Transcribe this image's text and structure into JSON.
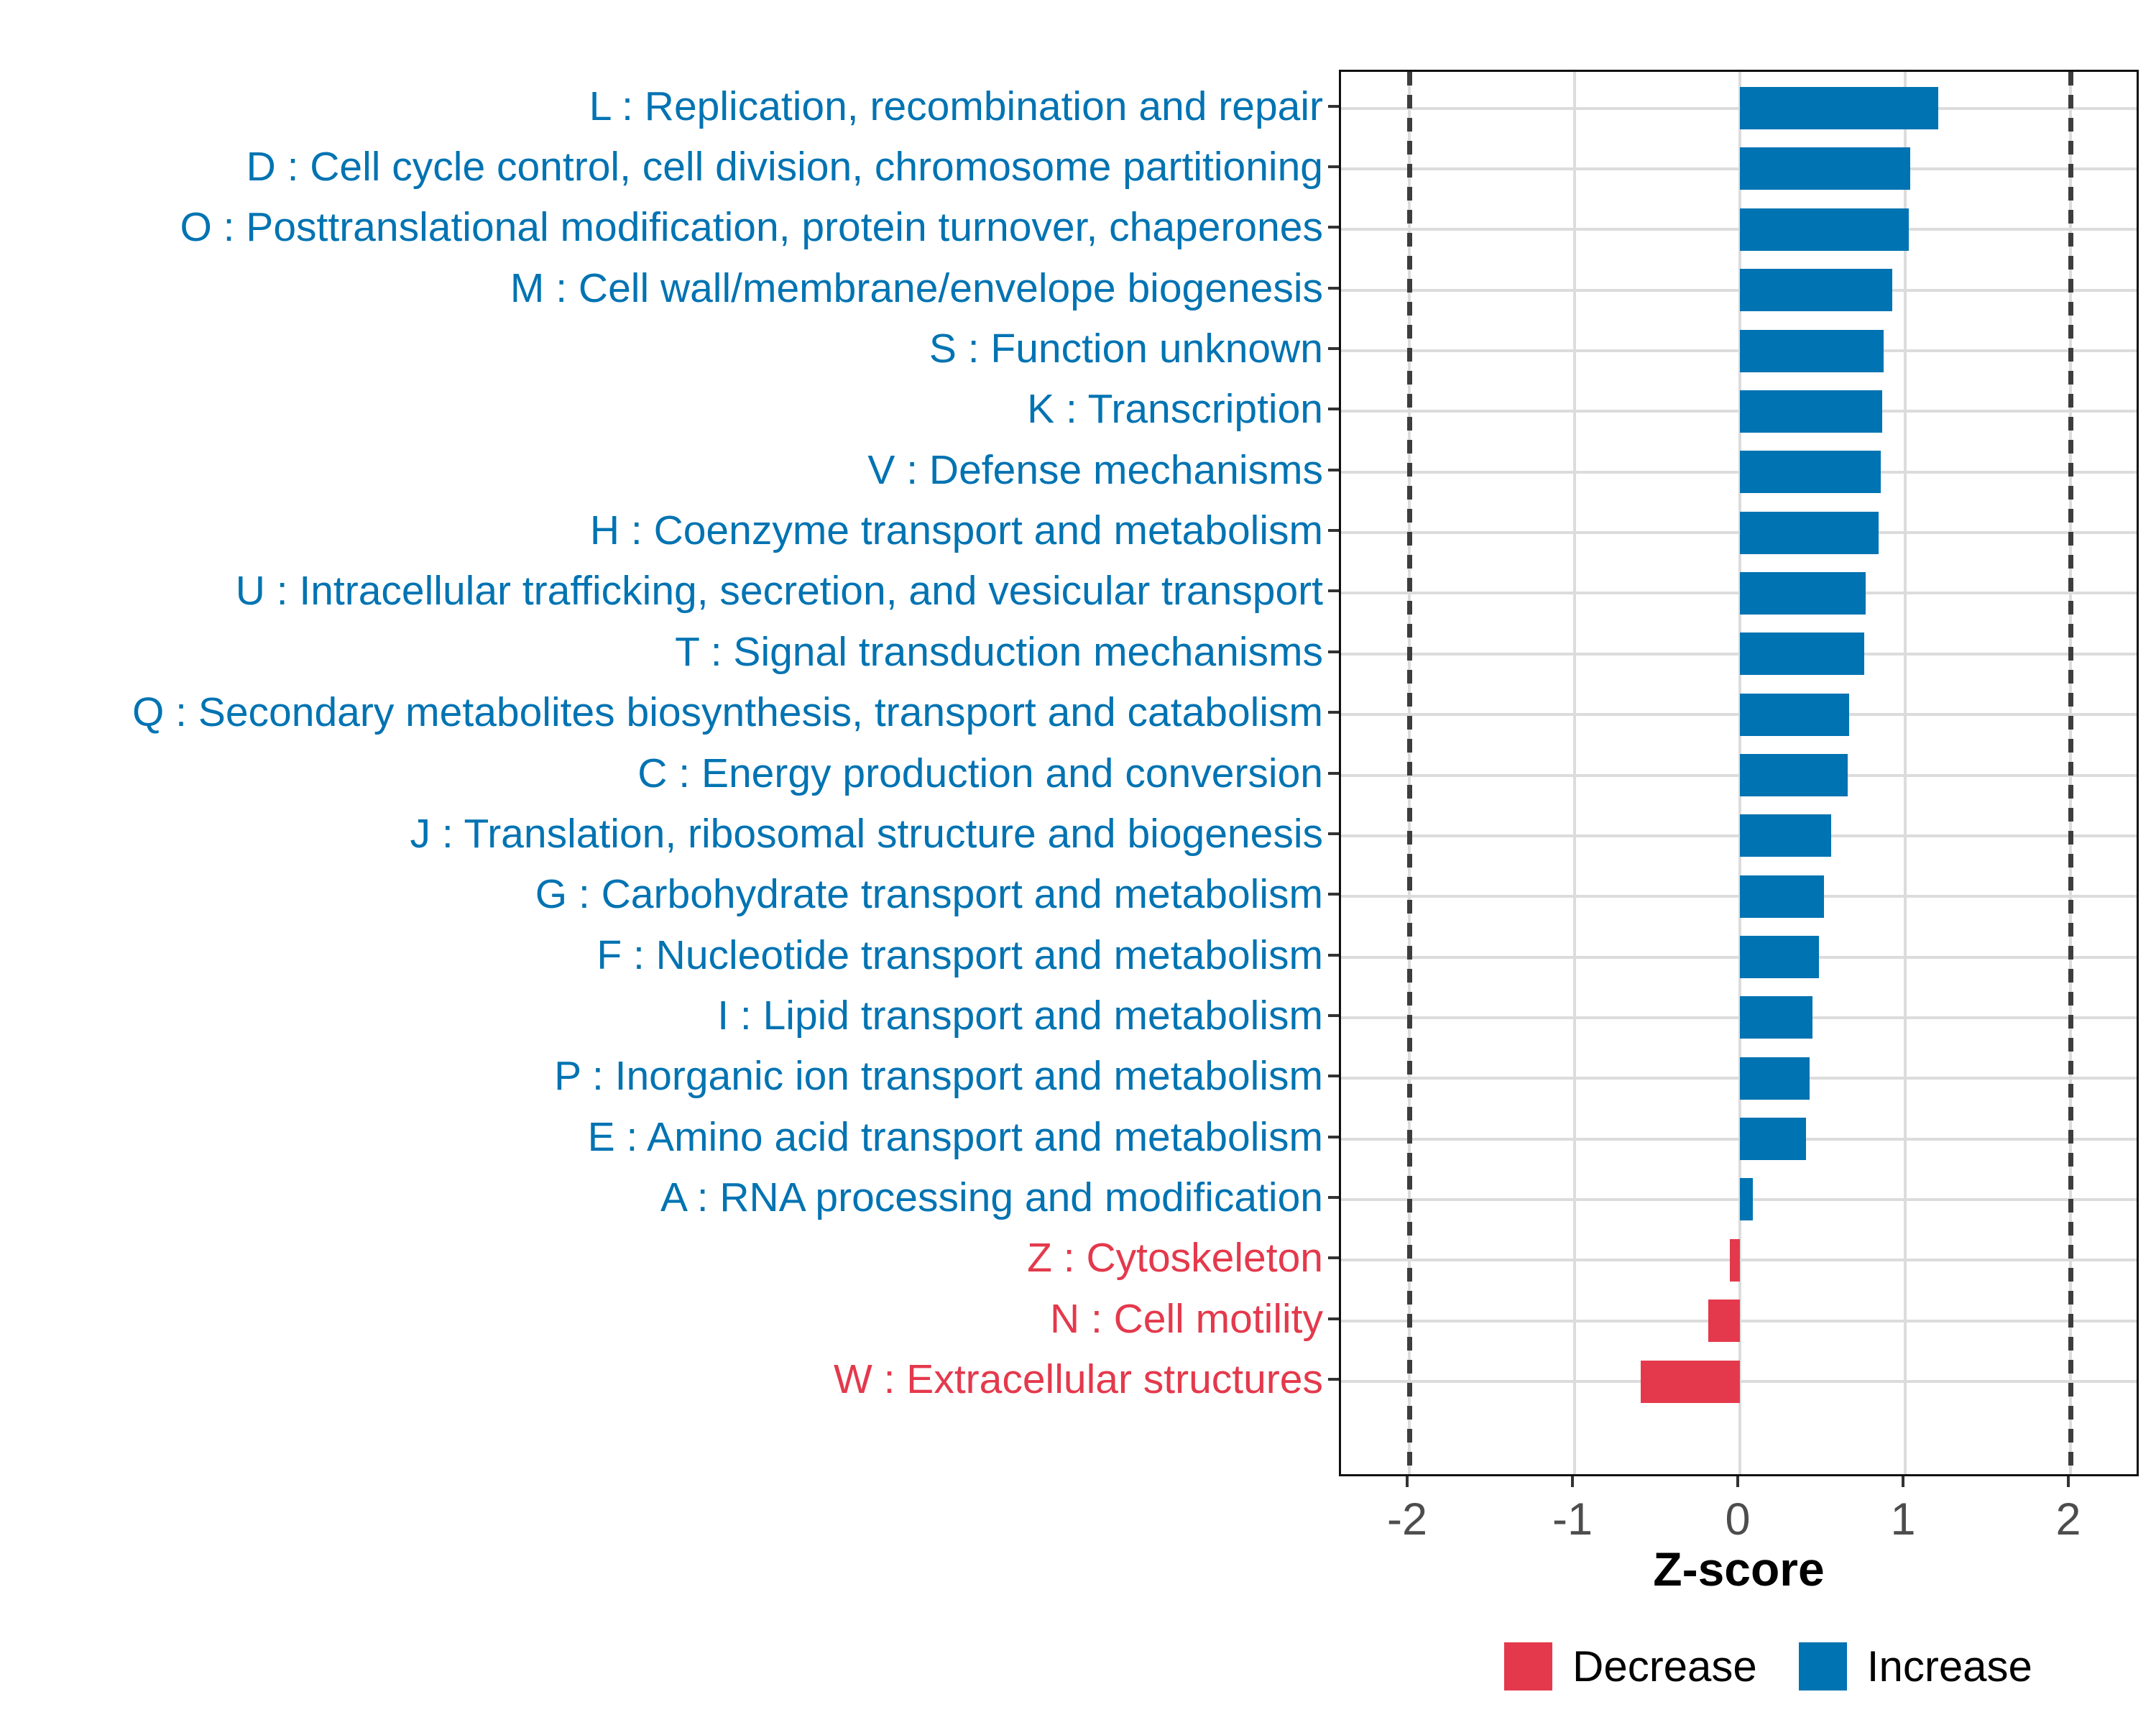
{
  "chart_data": {
    "type": "bar",
    "orientation": "horizontal",
    "xlabel": "Z-score",
    "xlim": [
      -2.41,
      2.43
    ],
    "xticks": [
      "-2",
      "-1",
      "0",
      "1",
      "2"
    ],
    "xtick_values": [
      -2,
      -1,
      0,
      1,
      2
    ],
    "dashed_vlines": [
      -2,
      2
    ],
    "grid": true,
    "legend_position": "bottom",
    "categories": [
      {
        "label": "L : Replication, recombination and repair",
        "value": 1.2,
        "group": "Increase"
      },
      {
        "label": "D : Cell cycle control, cell division, chromosome partitioning",
        "value": 1.03,
        "group": "Increase"
      },
      {
        "label": "O : Posttranslational modification, protein turnover, chaperones",
        "value": 1.02,
        "group": "Increase"
      },
      {
        "label": "M : Cell wall/membrane/envelope biogenesis",
        "value": 0.92,
        "group": "Increase"
      },
      {
        "label": "S : Function unknown",
        "value": 0.87,
        "group": "Increase"
      },
      {
        "label": "K : Transcription",
        "value": 0.86,
        "group": "Increase"
      },
      {
        "label": "V : Defense mechanisms",
        "value": 0.85,
        "group": "Increase"
      },
      {
        "label": "H : Coenzyme transport and metabolism",
        "value": 0.84,
        "group": "Increase"
      },
      {
        "label": "U : Intracellular trafficking, secretion, and vesicular transport",
        "value": 0.76,
        "group": "Increase"
      },
      {
        "label": "T : Signal transduction mechanisms",
        "value": 0.75,
        "group": "Increase"
      },
      {
        "label": "Q : Secondary metabolites biosynthesis, transport and catabolism",
        "value": 0.66,
        "group": "Increase"
      },
      {
        "label": "C : Energy production and conversion",
        "value": 0.65,
        "group": "Increase"
      },
      {
        "label": "J : Translation, ribosomal structure and biogenesis",
        "value": 0.55,
        "group": "Increase"
      },
      {
        "label": "G : Carbohydrate transport and metabolism",
        "value": 0.51,
        "group": "Increase"
      },
      {
        "label": "F : Nucleotide transport and metabolism",
        "value": 0.48,
        "group": "Increase"
      },
      {
        "label": "I : Lipid transport and metabolism",
        "value": 0.44,
        "group": "Increase"
      },
      {
        "label": "P : Inorganic ion transport and metabolism",
        "value": 0.42,
        "group": "Increase"
      },
      {
        "label": "E : Amino acid transport and metabolism",
        "value": 0.4,
        "group": "Increase"
      },
      {
        "label": "A : RNA processing and modification",
        "value": 0.08,
        "group": "Increase"
      },
      {
        "label": "Z : Cytoskeleton",
        "value": -0.06,
        "group": "Decrease"
      },
      {
        "label": "N : Cell motility",
        "value": -0.19,
        "group": "Decrease"
      },
      {
        "label": "W : Extracellular structures",
        "value": -0.6,
        "group": "Decrease"
      }
    ],
    "legend": [
      {
        "label": "Decrease",
        "color": "#E4394C"
      },
      {
        "label": "Increase",
        "color": "#0073B2"
      }
    ]
  },
  "colors": {
    "increase": "#0073B2",
    "decrease": "#E4394C",
    "label_increase": "#0073B2",
    "label_decrease": "#E4394C",
    "gridline": "#DCDCDC",
    "dashed_line": "#3d3d3d",
    "tick_text": "#4D4D4D",
    "axis_title_text": "#000000",
    "panel_border": "#111111"
  }
}
